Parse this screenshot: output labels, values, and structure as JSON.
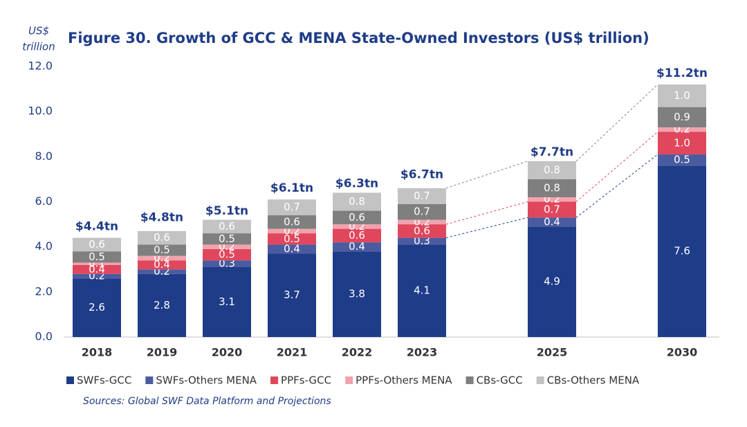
{
  "chart_data": {
    "type": "stacked_bar",
    "title": "Figure 30. Growth of GCC & MENA State-Owned Investors (US$ trillion)",
    "ylabel": [
      "US$",
      "trillion"
    ],
    "source": "Sources: Global SWF Data Platform and Projections",
    "categories": [
      "2018",
      "2019",
      "2020",
      "2021",
      "2022",
      "2023",
      "2025",
      "2030"
    ],
    "series": [
      {
        "name": "SWFs-GCC",
        "color": "#1f3c88",
        "values": [
          2.6,
          2.8,
          3.1,
          3.7,
          3.8,
          4.1,
          4.9,
          7.6
        ],
        "value_labels": [
          "2.6",
          "2.8",
          "3.1",
          "3.7",
          "3.8",
          "4.1",
          "4.9",
          "7.6"
        ]
      },
      {
        "name": "SWFs-Others MENA",
        "color": "#4b5b9f",
        "values": [
          0.2,
          0.2,
          0.3,
          0.4,
          0.4,
          0.3,
          0.4,
          0.5
        ],
        "value_labels": [
          "0.2",
          "0.2",
          "0.3",
          "0.4",
          "0.4",
          "0.3",
          "0.4",
          "0.5"
        ]
      },
      {
        "name": "PPFs-GCC",
        "color": "#e0475c",
        "values": [
          0.4,
          0.4,
          0.5,
          0.5,
          0.6,
          0.6,
          0.7,
          1.0
        ],
        "value_labels": [
          "0.4",
          "0.4",
          "0.5",
          "0.5",
          "0.6",
          "0.6",
          "0.7",
          "1.0"
        ]
      },
      {
        "name": "PPFs-Others MENA",
        "color": "#f0a3ad",
        "values": [
          0.1,
          0.2,
          0.2,
          0.2,
          0.2,
          0.2,
          0.2,
          0.2
        ],
        "value_labels": [
          "0.1",
          "0.2",
          "0.2",
          "0.2",
          "0.2",
          "0.2",
          "0.2",
          "0.2"
        ]
      },
      {
        "name": "CBs-GCC",
        "color": "#7f7f7f",
        "values": [
          0.5,
          0.5,
          0.5,
          0.6,
          0.6,
          0.7,
          0.8,
          0.9
        ],
        "value_labels": [
          "0.5",
          "0.5",
          "0.5",
          "0.6",
          "0.6",
          "0.7",
          "0.8",
          "0.9"
        ]
      },
      {
        "name": "CBs-Others MENA",
        "color": "#c3c3c3",
        "values": [
          0.6,
          0.6,
          0.6,
          0.7,
          0.8,
          0.7,
          0.8,
          1.0
        ],
        "value_labels": [
          "0.6",
          "0.6",
          "0.6",
          "0.7",
          "0.8",
          "0.7",
          "0.8",
          "1.0"
        ]
      }
    ],
    "totals": {
      "values": [
        4.4,
        4.8,
        5.1,
        6.1,
        6.3,
        6.7,
        7.7,
        11.2
      ],
      "value_labels": [
        "$4.4tn",
        "$4.8tn",
        "$5.1tn",
        "$6.1tn",
        "$6.3tn",
        "$6.7tn",
        "$7.7tn",
        "$11.2tn"
      ]
    },
    "ylim": [
      0,
      12
    ],
    "yticks": [
      {
        "value": 0,
        "label": "0.0"
      },
      {
        "value": 2,
        "label": "2.0"
      },
      {
        "value": 4,
        "label": "4.0"
      },
      {
        "value": 6,
        "label": "6.0"
      },
      {
        "value": 8,
        "label": "8.0"
      },
      {
        "value": 10,
        "label": "10.0"
      },
      {
        "value": 12,
        "label": "12.0"
      }
    ],
    "grid": false,
    "legend": "bottom"
  }
}
